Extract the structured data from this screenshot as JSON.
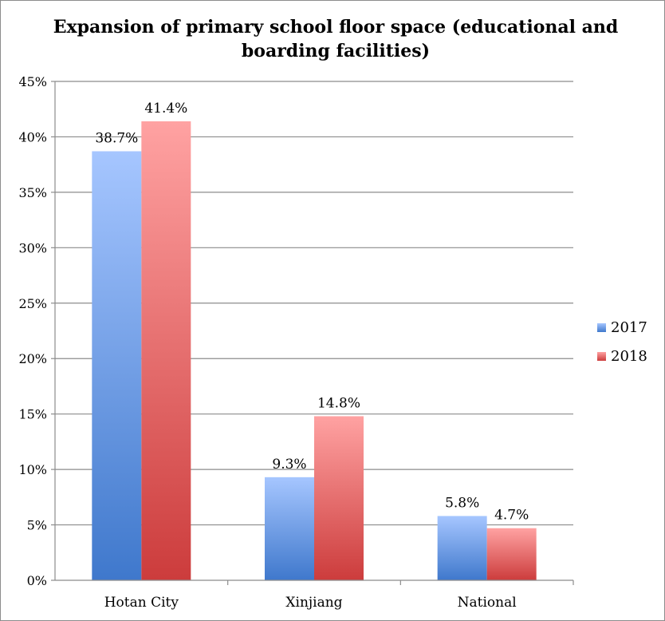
{
  "chart_data": {
    "type": "bar",
    "title": "Expansion of primary school floor space (educational and boarding facilities)",
    "categories": [
      "Hotan City",
      "Xinjiang",
      "National"
    ],
    "series": [
      {
        "name": "2017",
        "values": [
          38.7,
          9.3,
          5.8
        ],
        "labels": [
          "38.7%",
          "9.3%",
          "5.8%"
        ],
        "color_top": "#a6c6ff",
        "color_bottom": "#3f78cc"
      },
      {
        "name": "2018",
        "values": [
          41.4,
          14.8,
          4.7
        ],
        "labels": [
          "41.4%",
          "14.8%",
          "4.7%"
        ],
        "color_top": "#ffa2a2",
        "color_bottom": "#cc3c3c"
      }
    ],
    "ylim": [
      0,
      45
    ],
    "y_ticks": [
      0,
      5,
      10,
      15,
      20,
      25,
      30,
      35,
      40,
      45
    ],
    "y_tick_labels": [
      "0%",
      "5%",
      "10%",
      "15%",
      "20%",
      "25%",
      "30%",
      "35%",
      "40%",
      "45%"
    ],
    "xlabel": "",
    "ylabel": "",
    "grid": true,
    "legend_position": "right"
  }
}
